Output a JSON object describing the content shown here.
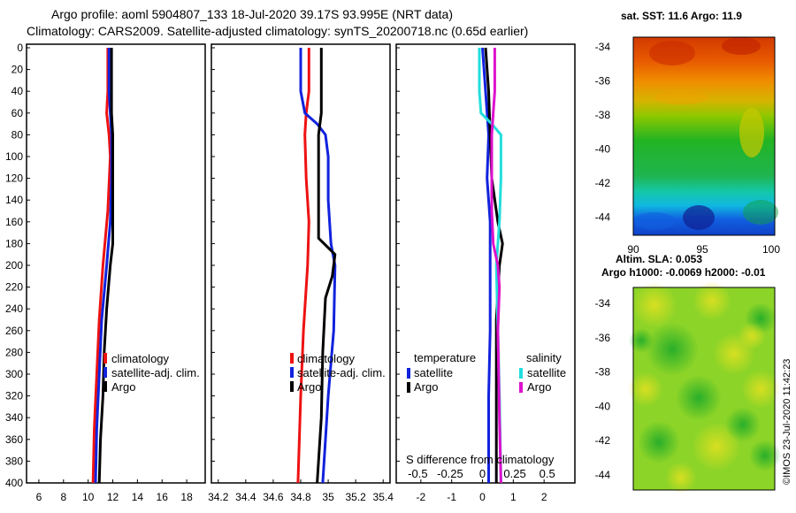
{
  "header": {
    "line1": "Argo profile: aoml 5904807_133 18-Jul-2020 39.17S 93.995E (NRT data)",
    "line2": "Climatology: CARS2009. Satellite-adjusted climatology: synTS_20200718.nc (0.65d earlier)"
  },
  "colors": {
    "red": "#ee1111",
    "blue": "#1122dd",
    "black": "#000000",
    "cyan": "#22dddd",
    "magenta": "#dd11cc"
  },
  "chart_data": [
    {
      "id": "temperature",
      "type": "line",
      "xlim": [
        5,
        19.5
      ],
      "ylim": [
        0,
        400
      ],
      "xticks": [
        6,
        8,
        10,
        12,
        14,
        16,
        18
      ],
      "yticks": [
        0,
        20,
        40,
        60,
        80,
        100,
        120,
        140,
        160,
        180,
        200,
        220,
        240,
        260,
        280,
        300,
        320,
        340,
        360,
        380,
        400
      ],
      "legend": [
        "climatology",
        "satellite-adj. clim.",
        "Argo"
      ],
      "series": [
        {
          "name": "climatology",
          "color": "red",
          "points": [
            [
              11.6,
              0
            ],
            [
              11.6,
              40
            ],
            [
              11.5,
              60
            ],
            [
              11.7,
              80
            ],
            [
              11.8,
              100
            ],
            [
              11.6,
              150
            ],
            [
              11.2,
              200
            ],
            [
              10.9,
              250
            ],
            [
              10.7,
              300
            ],
            [
              10.5,
              350
            ],
            [
              10.4,
              400
            ]
          ]
        },
        {
          "name": "satellite-adj. clim.",
          "color": "blue",
          "points": [
            [
              11.7,
              0
            ],
            [
              11.7,
              40
            ],
            [
              11.8,
              60
            ],
            [
              11.9,
              80
            ],
            [
              11.9,
              120
            ],
            [
              11.8,
              160
            ],
            [
              11.5,
              200
            ],
            [
              11.1,
              250
            ],
            [
              10.9,
              300
            ],
            [
              10.7,
              350
            ],
            [
              10.6,
              400
            ]
          ]
        },
        {
          "name": "Argo",
          "color": "black",
          "points": [
            [
              11.9,
              0
            ],
            [
              11.9,
              60
            ],
            [
              12.0,
              80
            ],
            [
              12.0,
              150
            ],
            [
              12.0,
              180
            ],
            [
              11.8,
              200
            ],
            [
              11.5,
              240
            ],
            [
              11.3,
              280
            ],
            [
              11.2,
              320
            ],
            [
              11.0,
              360
            ],
            [
              10.9,
              400
            ]
          ]
        }
      ]
    },
    {
      "id": "salinity",
      "type": "line",
      "xlim": [
        34.15,
        35.45
      ],
      "ylim": [
        0,
        400
      ],
      "xticks": [
        "34.2",
        "34.4",
        "34.6",
        "34.8",
        "35",
        "35.2",
        "35.4"
      ],
      "legend": [
        "climatology",
        "satellite-adj. clim.",
        "Argo"
      ],
      "series": [
        {
          "name": "climatology",
          "color": "red",
          "points": [
            [
              34.86,
              0
            ],
            [
              34.86,
              40
            ],
            [
              34.84,
              60
            ],
            [
              34.83,
              80
            ],
            [
              34.84,
              120
            ],
            [
              34.86,
              160
            ],
            [
              34.85,
              200
            ],
            [
              34.82,
              260
            ],
            [
              34.8,
              320
            ],
            [
              34.78,
              400
            ]
          ]
        },
        {
          "name": "satellite-adj. clim.",
          "color": "blue",
          "points": [
            [
              34.8,
              0
            ],
            [
              34.8,
              40
            ],
            [
              34.83,
              60
            ],
            [
              34.92,
              70
            ],
            [
              34.98,
              80
            ],
            [
              35.0,
              100
            ],
            [
              35.0,
              140
            ],
            [
              35.02,
              180
            ],
            [
              35.05,
              200
            ],
            [
              35.04,
              260
            ],
            [
              35.0,
              320
            ],
            [
              34.96,
              400
            ]
          ]
        },
        {
          "name": "Argo",
          "color": "black",
          "points": [
            [
              34.95,
              0
            ],
            [
              34.95,
              60
            ],
            [
              34.93,
              80
            ],
            [
              34.93,
              175
            ],
            [
              34.97,
              180
            ],
            [
              35.05,
              190
            ],
            [
              35.03,
              210
            ],
            [
              34.98,
              230
            ],
            [
              34.96,
              280
            ],
            [
              34.95,
              340
            ],
            [
              34.92,
              400
            ]
          ]
        }
      ]
    },
    {
      "id": "difference",
      "type": "line",
      "xlim": [
        -2.8,
        3.0
      ],
      "ylim": [
        0,
        400
      ],
      "xticks": [
        "-2",
        "-1",
        "0",
        "1",
        "2"
      ],
      "inset_label": "S difference from climatology",
      "inset_ticks": [
        "-0.5",
        "-0.25",
        "0",
        "0.25",
        "0.5"
      ],
      "legend_headers": [
        "temperature",
        "salinity"
      ],
      "legend": [
        "satellite",
        "Argo",
        "satellite",
        "Argo"
      ],
      "series": [
        {
          "name": "temperature satellite",
          "color": "blue",
          "points": [
            [
              0.0,
              0
            ],
            [
              0.1,
              40
            ],
            [
              0.2,
              80
            ],
            [
              0.15,
              120
            ],
            [
              0.25,
              160
            ],
            [
              0.25,
              200
            ],
            [
              0.25,
              260
            ],
            [
              0.2,
              320
            ],
            [
              0.2,
              400
            ]
          ]
        },
        {
          "name": "temperature Argo",
          "color": "black",
          "points": [
            [
              0.1,
              0
            ],
            [
              0.2,
              40
            ],
            [
              0.25,
              80
            ],
            [
              0.3,
              120
            ],
            [
              0.5,
              160
            ],
            [
              0.65,
              180
            ],
            [
              0.55,
              200
            ],
            [
              0.45,
              250
            ],
            [
              0.45,
              320
            ],
            [
              0.45,
              400
            ]
          ]
        },
        {
          "name": "salinity satellite",
          "color": "cyan",
          "points": [
            [
              -0.1,
              0
            ],
            [
              -0.1,
              40
            ],
            [
              -0.05,
              60
            ],
            [
              0.3,
              70
            ],
            [
              0.6,
              80
            ],
            [
              0.6,
              120
            ],
            [
              0.55,
              160
            ],
            [
              0.45,
              200
            ],
            [
              0.5,
              260
            ],
            [
              0.55,
              320
            ],
            [
              0.6,
              400
            ]
          ]
        },
        {
          "name": "salinity Argo",
          "color": "magenta",
          "points": [
            [
              0.4,
              0
            ],
            [
              0.4,
              40
            ],
            [
              0.3,
              80
            ],
            [
              0.3,
              150
            ],
            [
              0.35,
              180
            ],
            [
              0.5,
              200
            ],
            [
              0.55,
              220
            ],
            [
              0.5,
              260
            ],
            [
              0.55,
              340
            ],
            [
              0.6,
              400
            ]
          ]
        }
      ]
    },
    {
      "id": "sst-map",
      "type": "heatmap",
      "title": "sat. SST: 11.6 Argo: 11.9",
      "xticks": [
        "90",
        "95",
        "100"
      ],
      "yticks": [
        "-34",
        "-36",
        "-38",
        "-40",
        "-42",
        "-44"
      ]
    },
    {
      "id": "sla-map",
      "type": "heatmap",
      "title1": "Altim. SLA: 0.053",
      "title2": "Argo h1000: -0.0069 h2000: -0.01",
      "yticks": [
        "-34",
        "-36",
        "-38",
        "-40",
        "-42",
        "-44"
      ]
    }
  ],
  "credit": "©IMOS 23-Jul-2020 11:42:23"
}
